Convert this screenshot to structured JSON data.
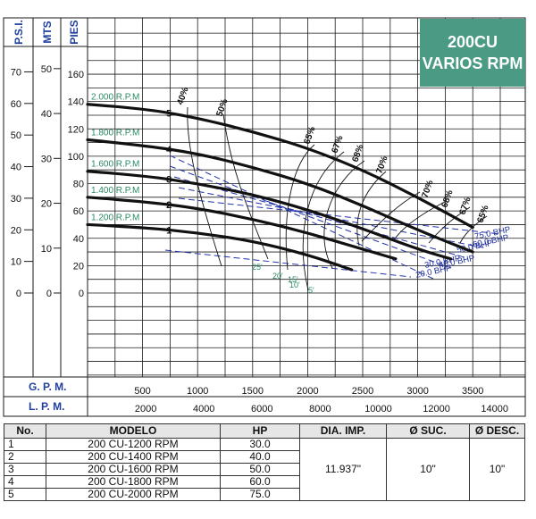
{
  "badge": {
    "line1": "200CU",
    "line2": "VARIOS RPM"
  },
  "axes": {
    "psi_label": "P.S.I.",
    "mts_label": "MTS",
    "pies_label": "PIES",
    "psi_ticks": [
      "70",
      "60",
      "50",
      "40",
      "30",
      "20",
      "10",
      "0"
    ],
    "mts_ticks": [
      "50",
      "40",
      "30",
      "20",
      "10",
      "0"
    ],
    "pies_ticks": [
      "160",
      "140",
      "120",
      "100",
      "80",
      "60",
      "40",
      "20",
      "0"
    ],
    "gpm_label": "G. P. M.",
    "lpm_label": "L. P. M.",
    "gpm_ticks": [
      "500",
      "1000",
      "1500",
      "2000",
      "2500",
      "3000",
      "3500"
    ],
    "lpm_ticks": [
      "2000",
      "4000",
      "6000",
      "8000",
      "10000",
      "12000",
      "14000"
    ]
  },
  "chart_data": {
    "type": "line",
    "xlabel": "G. P. M.",
    "ylabel": "PIES",
    "xlim": [
      0,
      4000
    ],
    "ylim": [
      0,
      160
    ],
    "grid": true,
    "series": [
      {
        "name": "2.000 R.P.M",
        "curve_number": "5",
        "x": [
          0,
          500,
          1000,
          1500,
          2000,
          2500,
          3000,
          3500
        ],
        "y": [
          138,
          135,
          128,
          118,
          106,
          90,
          70,
          48
        ]
      },
      {
        "name": "1.800 R.P.M",
        "curve_number": "4",
        "x": [
          0,
          500,
          1000,
          1500,
          2000,
          2500,
          3000,
          3500
        ],
        "y": [
          112,
          108,
          102,
          92,
          80,
          64,
          46,
          30
        ]
      },
      {
        "name": "1.600 R.P.M",
        "curve_number": "3",
        "x": [
          0,
          500,
          1000,
          1500,
          2000,
          2500,
          3000,
          3300
        ],
        "y": [
          89,
          86,
          80,
          72,
          61,
          47,
          32,
          25
        ]
      },
      {
        "name": "1.400 R.P.M",
        "curve_number": "2",
        "x": [
          0,
          500,
          1000,
          1500,
          2000,
          2500,
          2800
        ],
        "y": [
          70,
          67,
          62,
          54,
          44,
          32,
          25
        ]
      },
      {
        "name": "1.200 R.P.M",
        "curve_number": "1",
        "x": [
          0,
          500,
          1000,
          1500,
          2000,
          2400
        ],
        "y": [
          50,
          48,
          44,
          38,
          28,
          17
        ]
      }
    ],
    "efficiency_labels": [
      "40%",
      "50%",
      "65%",
      "67%",
      "68%",
      "70%",
      "70%",
      "68%",
      "67%",
      "65%"
    ],
    "bhp_labels": [
      "75.0 BHP",
      "60.0 BHP",
      "50.0 BHP",
      "40.0 BHP",
      "30.0 BHP",
      "20.0 BHP"
    ],
    "npsh_labels": [
      "25'",
      "20'",
      "15'",
      "10'",
      "5'"
    ]
  },
  "table": {
    "headers": {
      "no": "No.",
      "modelo": "MODELO",
      "hp": "HP",
      "dia": "DIA. IMP.",
      "suc": "Ø SUC.",
      "desc": "Ø DESC."
    },
    "rows": [
      {
        "no": "1",
        "modelo": "200 CU-1200 RPM",
        "hp": "30.0"
      },
      {
        "no": "2",
        "modelo": "200 CU-1400 RPM",
        "hp": "40.0"
      },
      {
        "no": "3",
        "modelo": "200 CU-1600 RPM",
        "hp": "50.0"
      },
      {
        "no": "4",
        "modelo": "200 CU-1800 RPM",
        "hp": "60.0"
      },
      {
        "no": "5",
        "modelo": "200 CU-2000 RPM",
        "hp": "75.0"
      }
    ],
    "dia": "11.937\"",
    "suc": "10\"",
    "desc": "10\""
  }
}
